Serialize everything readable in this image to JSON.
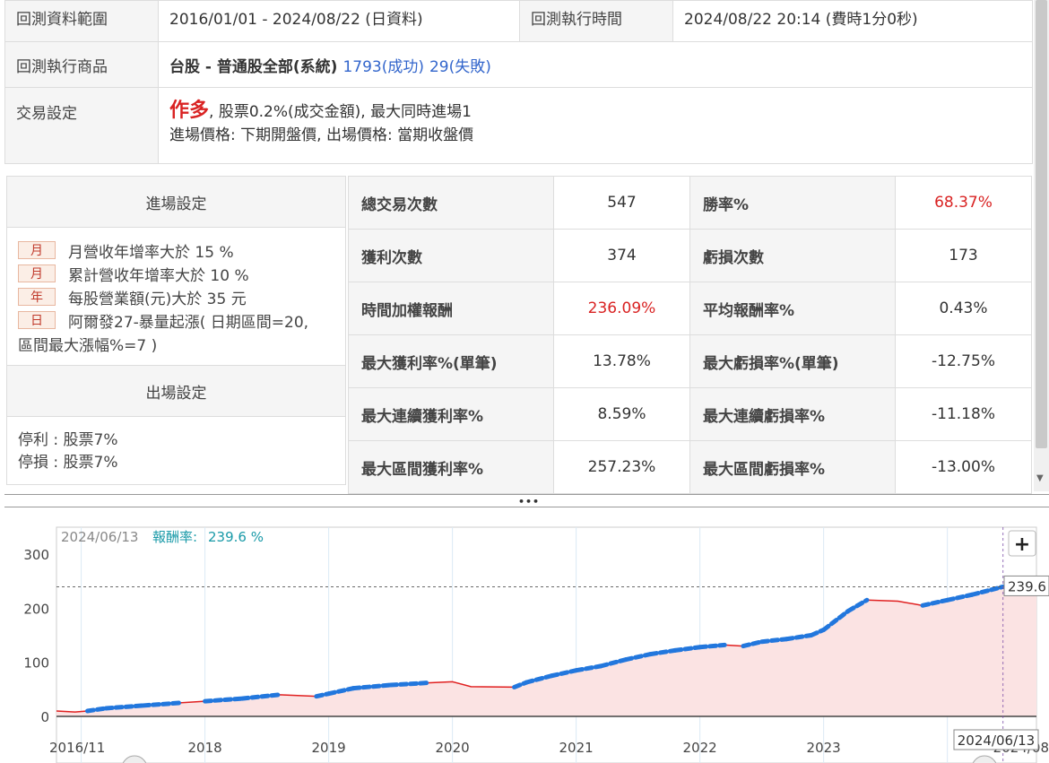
{
  "info": {
    "range_label": "回測資料範圍",
    "range_value": "2016/01/01 - 2024/08/22 (日資料)",
    "exec_time_label": "回測執行時間",
    "exec_time_value": "2024/08/22 20:14 (費時1分0秒)",
    "product_label": "回測執行商品",
    "product_value": "台股 - 普通股全部(系統)",
    "product_success": "1793(成功)",
    "product_fail": "29(失敗)",
    "trade_label": "交易設定",
    "trade_direction": "作多",
    "trade_fee": ", 股票0.2%(成交金額), 最大同時進場1",
    "trade_prices": "進場價格: 下期開盤價, 出場價格: 當期收盤價"
  },
  "entry": {
    "header": "進場設定",
    "conditions": [
      {
        "tag": "月",
        "text": "月營收年增率大於 15 %"
      },
      {
        "tag": "月",
        "text": "累計營收年增率大於 10 %"
      },
      {
        "tag": "年",
        "text": "每股營業額(元)大於 35 元"
      },
      {
        "tag": "日",
        "text": "阿爾發27-暴量起漲( 日期區間=20,"
      }
    ],
    "condition_wrap": "區間最大漲幅%=7 )"
  },
  "exit": {
    "header": "出場設定",
    "take_profit": "停利 : 股票7%",
    "stop_loss": "停損 : 股票7%"
  },
  "stats": [
    {
      "l1": "總交易次數",
      "v1": "547",
      "l2": "勝率%",
      "v2": "68.37%",
      "v2_red": true
    },
    {
      "l1": "獲利次數",
      "v1": "374",
      "l2": "虧損次數",
      "v2": "173"
    },
    {
      "l1": "時間加權報酬",
      "v1": "236.09%",
      "v1_red": true,
      "l2": "平均報酬率%",
      "v2": "0.43%"
    },
    {
      "l1": "最大獲利率%(單筆)",
      "v1": "13.78%",
      "l2": "最大虧損率%(單筆)",
      "v2": "-12.75%"
    },
    {
      "l1": "最大連續獲利率%",
      "v1": "8.59%",
      "l2": "最大連續虧損率%",
      "v2": "-11.18%"
    },
    {
      "l1": "最大區間獲利率%",
      "v1": "257.23%",
      "l2": "最大區間虧損率%",
      "v2": "-13.00%"
    }
  ],
  "splitter_glyph": "•••",
  "chart": {
    "hover_date": "2024/06/13",
    "hover_label": "報酬率:",
    "hover_value": "239.6 %",
    "last_value_tag": "239.6",
    "crosshair_date": "2024/06/13",
    "zoom_button": "+",
    "line_color": "#e02020",
    "marker_color": "#2277dd",
    "fill_color": "#fbe3e3"
  },
  "chart_data": {
    "type": "area",
    "series_name": "報酬率",
    "y_ticks": [
      0,
      100,
      200,
      300
    ],
    "ylim": [
      -5,
      300
    ],
    "x_ticks": [
      "2016/11",
      "2018",
      "2019",
      "2020",
      "2021",
      "2022",
      "2023",
      "2024/08"
    ],
    "xlim": [
      2016.8,
      2024.72
    ],
    "x_year_gridlines": [
      2017,
      2018,
      2019,
      2020,
      2021,
      2022,
      2023,
      2024
    ],
    "points": [
      [
        2016.8,
        10
      ],
      [
        2016.95,
        8
      ],
      [
        2017.05,
        10
      ],
      [
        2017.2,
        15
      ],
      [
        2017.5,
        20
      ],
      [
        2017.8,
        25
      ],
      [
        2018.0,
        28
      ],
      [
        2018.3,
        33
      ],
      [
        2018.6,
        40
      ],
      [
        2018.9,
        37
      ],
      [
        2019.0,
        42
      ],
      [
        2019.2,
        52
      ],
      [
        2019.5,
        58
      ],
      [
        2019.8,
        62
      ],
      [
        2020.0,
        64
      ],
      [
        2020.15,
        55
      ],
      [
        2020.5,
        54
      ],
      [
        2020.6,
        63
      ],
      [
        2020.8,
        75
      ],
      [
        2021.0,
        85
      ],
      [
        2021.2,
        93
      ],
      [
        2021.4,
        105
      ],
      [
        2021.6,
        115
      ],
      [
        2021.8,
        122
      ],
      [
        2022.0,
        128
      ],
      [
        2022.2,
        132
      ],
      [
        2022.35,
        130
      ],
      [
        2022.5,
        138
      ],
      [
        2022.7,
        143
      ],
      [
        2022.9,
        150
      ],
      [
        2023.0,
        160
      ],
      [
        2023.2,
        195
      ],
      [
        2023.35,
        215
      ],
      [
        2023.6,
        213
      ],
      [
        2023.8,
        205
      ],
      [
        2024.0,
        215
      ],
      [
        2024.2,
        225
      ],
      [
        2024.45,
        239.6
      ],
      [
        2024.6,
        242
      ],
      [
        2024.72,
        240
      ]
    ],
    "crosshair_x": 2024.45,
    "crosshair_y": 239.6
  }
}
